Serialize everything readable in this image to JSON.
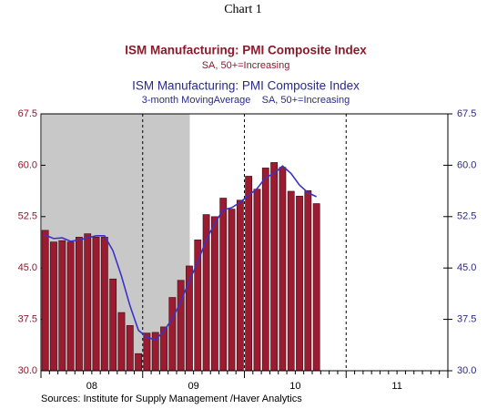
{
  "chart_data": {
    "type": "bar",
    "title": "Chart 1",
    "series": [
      {
        "name": "ISM Manufacturing: PMI Composite Index",
        "subtitle": "SA, 50+=Increasing",
        "type": "bar",
        "color": "#9b1b30",
        "values": [
          50.5,
          48.8,
          49.0,
          48.8,
          49.5,
          50.0,
          49.5,
          49.5,
          43.4,
          38.5,
          36.6,
          32.5,
          35.5,
          35.6,
          36.4,
          40.7,
          43.2,
          45.3,
          49.1,
          52.8,
          52.5,
          55.2,
          53.6,
          54.9,
          58.4,
          56.5,
          59.6,
          60.4,
          59.7,
          56.2,
          55.5,
          56.3,
          54.4
        ]
      },
      {
        "name": "ISM Manufacturing: PMI Composite Index",
        "subtitle": "3-month MovingAverage    SA, 50+=Increasing",
        "type": "line",
        "color": "#3a32c8",
        "values": [
          49.8,
          49.3,
          49.4,
          48.9,
          49.1,
          49.4,
          49.7,
          49.7,
          47.5,
          43.8,
          39.5,
          35.9,
          34.9,
          34.5,
          35.8,
          37.6,
          40.1,
          43.1,
          45.9,
          49.1,
          51.5,
          53.5,
          53.8,
          54.6,
          55.6,
          56.6,
          58.2,
          58.8,
          59.9,
          58.8,
          57.1,
          56.0,
          55.4
        ]
      }
    ],
    "xticks": [
      "08",
      "09",
      "10",
      "11"
    ],
    "ylim": [
      30,
      67.5
    ],
    "yticks": [
      {
        "value": 30,
        "label": "30.0"
      },
      37.5,
      {
        "value": 45,
        "label": "45.0"
      },
      52.5,
      {
        "value": 60,
        "label": "60.0"
      },
      67.5
    ],
    "y2lim": [
      30,
      67.5
    ],
    "y2ticks": [
      {
        "value": 30,
        "label": "30.0"
      },
      37.5,
      {
        "value": 45,
        "label": "45.0"
      },
      52.5,
      {
        "value": 60,
        "label": "60.0"
      },
      67.5
    ],
    "source": "Sources:  Institute for Supply Management /Haver Analytics"
  }
}
